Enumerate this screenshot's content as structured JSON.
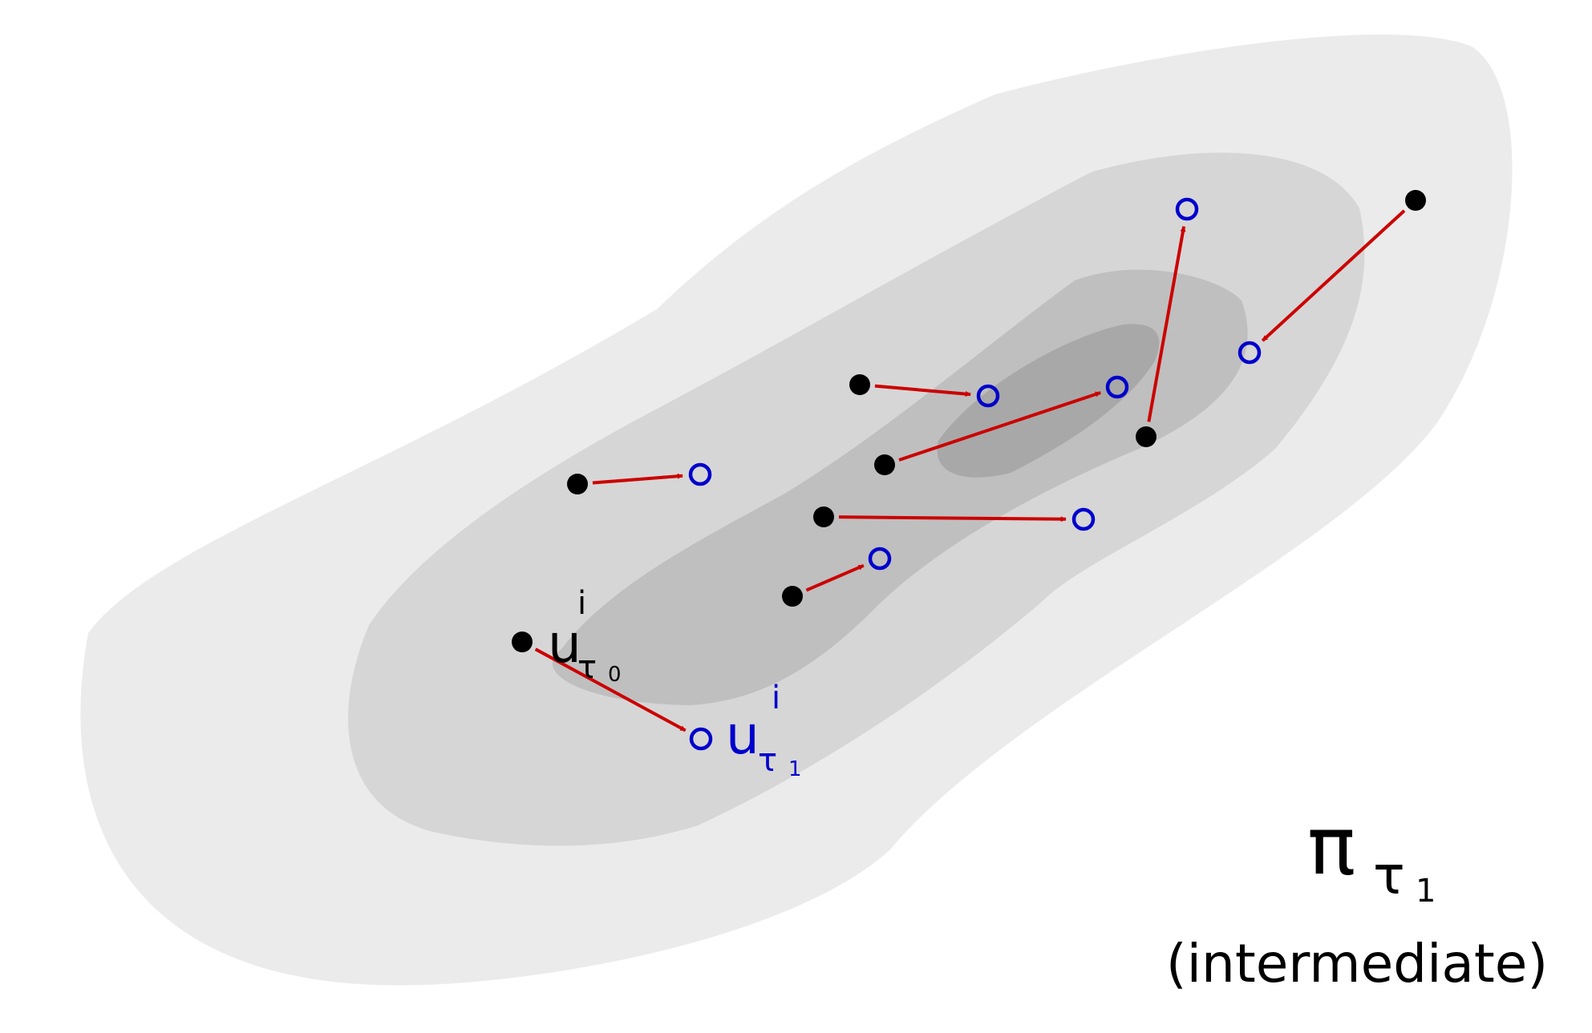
{
  "colors": {
    "level1": "#ebebeb",
    "level2": "#d6d6d6",
    "level3": "#bfbfbf",
    "level4": "#a8a8a8",
    "source_point": "#000000",
    "target_point": "#0000cc",
    "arrow": "#cc0000",
    "text": "#000000"
  },
  "labels": {
    "source_base": "u",
    "source_sup": "i",
    "source_sub_greek": "τ",
    "source_sub_index": "0",
    "target_base": "u",
    "target_sup": "i",
    "target_sub_greek": "τ",
    "target_sub_index": "1",
    "dist_symbol": "π",
    "dist_sub_greek": "τ",
    "dist_sub_index": "1",
    "caption": "(intermediate)"
  }
}
